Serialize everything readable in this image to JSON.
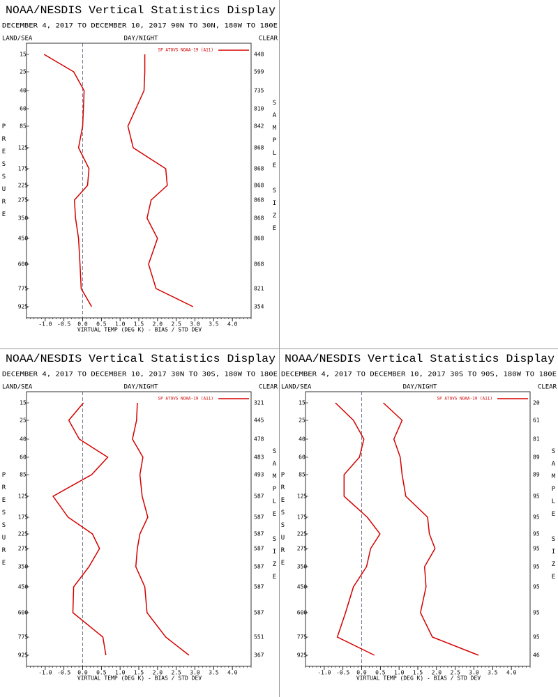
{
  "chart_data": [
    {
      "type": "line",
      "title": "NOAA/NESDIS Vertical Statistics Display",
      "subtitle": "DECEMBER 4, 2017 TO DECEMBER 10, 2017 90N TO 30N, 180W TO 180E",
      "land_sea_label": "LAND/SEA",
      "day_night_label": "DAY/NIGHT",
      "clear_label": "CLEAR",
      "ylabel": "PRESSURE",
      "y2label": "SAMPLE SIZE",
      "xlabel": "VIRTUAL TEMP (DEG K) - BIAS / STD DEV",
      "legend": "SP ATOVS NOAA-19 (A11)",
      "categories": [
        15,
        25,
        40,
        60,
        85,
        125,
        175,
        225,
        275,
        350,
        450,
        600,
        775,
        925
      ],
      "series": [
        {
          "color": "#d40000",
          "values": [
            -1.03,
            -0.24,
            0.04,
            0.02,
            0.0,
            -0.11,
            0.17,
            0.13,
            -0.22,
            -0.19,
            -0.11,
            -0.07,
            -0.04,
            0.24
          ]
        },
        {
          "color": "#d40000",
          "values": [
            1.66,
            1.66,
            1.64,
            1.42,
            1.21,
            1.35,
            2.22,
            2.26,
            1.83,
            1.72,
            2.0,
            1.76,
            1.96,
            2.95
          ]
        }
      ],
      "sample_size": [
        448,
        599,
        735,
        810,
        842,
        868,
        868,
        868,
        868,
        868,
        868,
        868,
        821,
        354
      ],
      "xlim": [
        -1.5,
        4.5
      ],
      "xticks": [
        {
          "value": -1,
          "label": "-1.0"
        },
        {
          "value": -0.5,
          "label": "-0.5"
        },
        {
          "value": 0,
          "label": "0.0"
        },
        0.5,
        {
          "value": 1,
          "label": "1.0"
        },
        1.5,
        {
          "value": 2,
          "label": "2.0"
        },
        2.5,
        {
          "value": 3,
          "label": "3.0"
        },
        3.5,
        {
          "value": 4,
          "label": "4.0"
        }
      ]
    },
    {
      "type": "line",
      "title": "NOAA/NESDIS Vertical Statistics Display",
      "subtitle": "DECEMBER 4, 2017 TO DECEMBER 10, 2017 30N TO 30S, 180W TO 180E",
      "land_sea_label": "LAND/SEA",
      "day_night_label": "DAY/NIGHT",
      "clear_label": "CLEAR",
      "ylabel": "PRESSURE",
      "y2label": "SAMPLE SIZE",
      "xlabel": "VIRTUAL TEMP (DEG K) - BIAS / STD DEV",
      "legend": "SP ATOVS NOAA-19 (A11)",
      "categories": [
        15,
        25,
        40,
        60,
        85,
        125,
        175,
        225,
        275,
        350,
        450,
        600,
        775,
        925
      ],
      "series": [
        {
          "color": "#d40000",
          "values": [
            0.02,
            -0.37,
            -0.09,
            0.67,
            0.24,
            -0.79,
            -0.39,
            0.26,
            0.45,
            0.17,
            -0.24,
            -0.26,
            0.54,
            0.62
          ]
        },
        {
          "color": "#d40000",
          "values": [
            1.46,
            1.44,
            1.33,
            1.61,
            1.53,
            1.59,
            1.74,
            1.53,
            1.46,
            1.42,
            1.66,
            1.72,
            2.22,
            2.84
          ]
        }
      ],
      "sample_size": [
        321,
        445,
        478,
        483,
        493,
        587,
        587,
        587,
        587,
        587,
        587,
        587,
        551,
        367
      ],
      "xlim": [
        -1.5,
        4.5
      ],
      "xticks": [
        {
          "value": -1,
          "label": "-1.0"
        },
        {
          "value": -0.5,
          "label": "-0.5"
        },
        {
          "value": 0,
          "label": "0.0"
        },
        0.5,
        {
          "value": 1,
          "label": "1.0"
        },
        1.5,
        {
          "value": 2,
          "label": "2.0"
        },
        2.5,
        {
          "value": 3,
          "label": "3.0"
        },
        3.5,
        {
          "value": 4,
          "label": "4.0"
        }
      ]
    },
    {
      "type": "line",
      "title": "NOAA/NESDIS Vertical Statistics Display",
      "subtitle": "DECEMBER 4, 2017 TO DECEMBER 10, 2017 30S TO 90S, 180W TO 180E",
      "land_sea_label": "LAND/SEA",
      "day_night_label": "DAY/NIGHT",
      "clear_label": "CLEAR",
      "ylabel": "PRESSURE",
      "y2label": "SAMPLE SIZE",
      "xlabel": "VIRTUAL TEMP (DEG K) - BIAS / STD DEV",
      "legend": "SP ATOVS NOAA-19 (A11)",
      "categories": [
        15,
        25,
        40,
        60,
        85,
        125,
        175,
        225,
        275,
        350,
        450,
        600,
        775,
        925
      ],
      "series": [
        {
          "color": "#d40000",
          "values": [
            -0.7,
            -0.22,
            0.06,
            -0.06,
            -0.47,
            -0.47,
            0.15,
            0.49,
            0.24,
            0.13,
            -0.22,
            -0.43,
            -0.65,
            0.34
          ]
        },
        {
          "color": "#d40000",
          "values": [
            0.58,
            1.08,
            0.86,
            1.03,
            1.08,
            1.18,
            1.76,
            1.81,
            1.96,
            1.68,
            1.72,
            1.57,
            1.89,
            3.12
          ]
        }
      ],
      "sample_size": [
        20,
        61,
        81,
        89,
        89,
        95,
        95,
        95,
        95,
        95,
        95,
        95,
        95,
        46
      ],
      "xlim": [
        -1.5,
        4.5
      ],
      "xticks": [
        {
          "value": -1,
          "label": "-1.0"
        },
        {
          "value": -0.5,
          "label": "-0.5"
        },
        {
          "value": 0,
          "label": "0.0"
        },
        0.5,
        {
          "value": 1,
          "label": "1.0"
        },
        1.5,
        {
          "value": 2,
          "label": "2.0"
        },
        2.5,
        {
          "value": 3,
          "label": "3.0"
        },
        3.5,
        {
          "value": 4,
          "label": "4.0"
        }
      ]
    }
  ]
}
